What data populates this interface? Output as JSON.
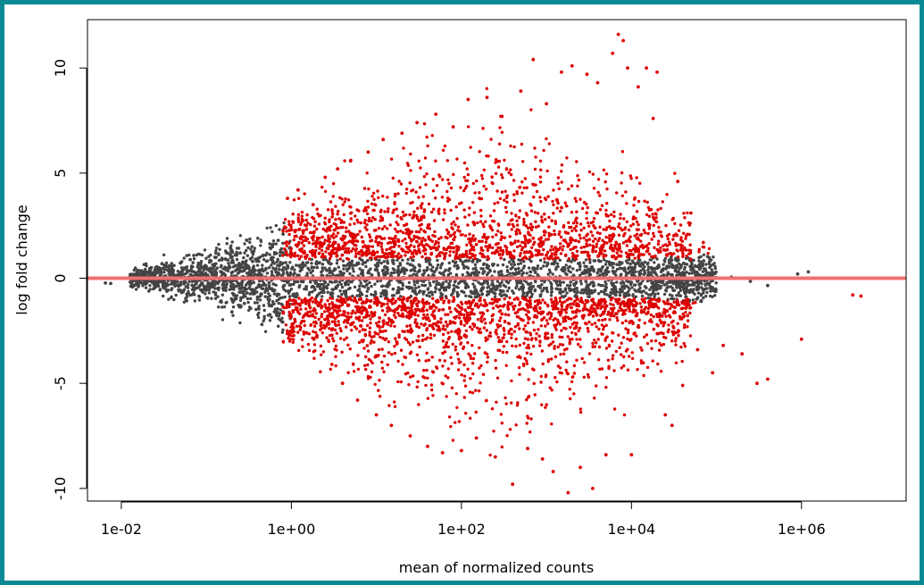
{
  "chart_data": {
    "type": "scatter",
    "title": "",
    "xlabel": "mean of normalized counts",
    "ylabel": "log fold change",
    "x_scale": "log10",
    "xlim": [
      0.004,
      17000000
    ],
    "ylim": [
      -10.6,
      12.3
    ],
    "x_ticks": [
      {
        "value": 0.01,
        "label": "1e-02"
      },
      {
        "value": 1,
        "label": "1e+00"
      },
      {
        "value": 100,
        "label": "1e+02"
      },
      {
        "value": 10000,
        "label": "1e+04"
      },
      {
        "value": 1000000,
        "label": "1e+06"
      }
    ],
    "y_ticks": [
      {
        "value": -10,
        "label": "-10"
      },
      {
        "value": -5,
        "label": "-5"
      },
      {
        "value": 0,
        "label": "0"
      },
      {
        "value": 5,
        "label": "5"
      },
      {
        "value": 10,
        "label": "10"
      }
    ],
    "reference_line": {
      "y": 0,
      "color": "#f07070"
    },
    "series": [
      {
        "color": "#444444",
        "points": [
          [
            0.0065,
            -0.23
          ],
          [
            0.0075,
            -0.25
          ],
          [
            0.013,
            -0.18
          ],
          [
            0.02,
            -0.2
          ],
          [
            0.03,
            -0.15
          ],
          [
            0.05,
            -0.28
          ],
          [
            0.08,
            0.12
          ],
          [
            0.12,
            -0.35
          ],
          [
            0.15,
            0.3
          ],
          [
            0.2,
            -0.45
          ],
          [
            0.25,
            0.55
          ],
          [
            0.3,
            -0.7
          ],
          [
            0.35,
            0.8
          ],
          [
            0.4,
            -0.9
          ],
          [
            0.5,
            1.1
          ],
          [
            0.55,
            -1.3
          ],
          [
            0.6,
            1.5
          ],
          [
            0.65,
            -1.6
          ],
          [
            0.7,
            1.8
          ],
          [
            0.75,
            -2.0
          ],
          [
            0.8,
            2.1
          ],
          [
            0.2,
            -1.6
          ],
          [
            0.25,
            1.2
          ],
          [
            0.3,
            1.8
          ],
          [
            0.28,
            -1.2
          ],
          [
            0.45,
            -2.2
          ],
          [
            0.9,
            0.6
          ],
          [
            1.5,
            -0.4
          ],
          [
            3,
            0.3
          ],
          [
            8,
            -0.5
          ],
          [
            20,
            0.4
          ],
          [
            60,
            -0.3
          ],
          [
            200,
            0.5
          ],
          [
            700,
            -0.4
          ],
          [
            3000,
            0.3
          ],
          [
            10000,
            -0.2
          ],
          [
            30000,
            0.1
          ],
          [
            60000,
            -0.2
          ],
          [
            90000,
            0.25
          ],
          [
            150000,
            0.05
          ],
          [
            250000,
            -0.15
          ],
          [
            400000,
            -0.35
          ],
          [
            900000,
            0.2
          ],
          [
            1200000,
            0.3
          ]
        ]
      },
      {
        "color": "#dd0000",
        "points": [
          [
            0.9,
            3.8
          ],
          [
            1.2,
            4.2
          ],
          [
            1.8,
            3.5
          ],
          [
            2.5,
            4.8
          ],
          [
            3,
            -4.1
          ],
          [
            3.5,
            5.2
          ],
          [
            4,
            -5.0
          ],
          [
            5,
            5.6
          ],
          [
            6,
            -5.8
          ],
          [
            8,
            6.0
          ],
          [
            10,
            -6.5
          ],
          [
            12,
            6.6
          ],
          [
            15,
            -7.0
          ],
          [
            20,
            6.9
          ],
          [
            25,
            -7.5
          ],
          [
            30,
            7.4
          ],
          [
            40,
            -8.0
          ],
          [
            50,
            7.8
          ],
          [
            60,
            -8.3
          ],
          [
            80,
            7.2
          ],
          [
            100,
            -8.2
          ],
          [
            120,
            8.5
          ],
          [
            150,
            -7.6
          ],
          [
            200,
            8.6
          ],
          [
            250,
            -8.5
          ],
          [
            300,
            7.7
          ],
          [
            400,
            -9.8
          ],
          [
            500,
            8.9
          ],
          [
            600,
            -8.1
          ],
          [
            700,
            10.4
          ],
          [
            900,
            -8.6
          ],
          [
            1000,
            8.3
          ],
          [
            1200,
            -9.2
          ],
          [
            1500,
            9.8
          ],
          [
            1800,
            -10.2
          ],
          [
            2000,
            10.1
          ],
          [
            2500,
            -9.0
          ],
          [
            3000,
            9.7
          ],
          [
            3500,
            -10.0
          ],
          [
            4000,
            9.3
          ],
          [
            5000,
            -8.4
          ],
          [
            6000,
            10.7
          ],
          [
            7000,
            11.6
          ],
          [
            8000,
            11.3
          ],
          [
            9000,
            10.0
          ],
          [
            10000,
            -8.4
          ],
          [
            12000,
            9.1
          ],
          [
            15000,
            10.0
          ],
          [
            18000,
            7.6
          ],
          [
            20000,
            9.8
          ],
          [
            25000,
            -6.5
          ],
          [
            30000,
            -7.0
          ],
          [
            35000,
            4.6
          ],
          [
            40000,
            -5.1
          ],
          [
            50000,
            3.1
          ],
          [
            60000,
            -3.4
          ],
          [
            70000,
            1.7
          ],
          [
            90000,
            -4.5
          ],
          [
            120000,
            -3.2
          ],
          [
            200000,
            -3.6
          ],
          [
            300000,
            -5.0
          ],
          [
            400000,
            -4.8
          ],
          [
            1000000,
            -2.9
          ],
          [
            4000000,
            -0.8
          ],
          [
            5000000,
            -0.85
          ],
          [
            1.5,
            2.5
          ],
          [
            2,
            -2.8
          ],
          [
            3,
            2.0
          ],
          [
            5,
            -2.2
          ],
          [
            10,
            1.9
          ],
          [
            20,
            -1.8
          ],
          [
            40,
            2.4
          ],
          [
            80,
            -2.1
          ],
          [
            150,
            1.6
          ],
          [
            300,
            -1.7
          ],
          [
            700,
            1.9
          ],
          [
            1500,
            -1.6
          ],
          [
            3000,
            1.8
          ],
          [
            6000,
            -1.5
          ],
          [
            12000,
            1.4
          ],
          [
            25000,
            -1.2
          ],
          [
            50000,
            0.9
          ]
        ]
      }
    ]
  }
}
